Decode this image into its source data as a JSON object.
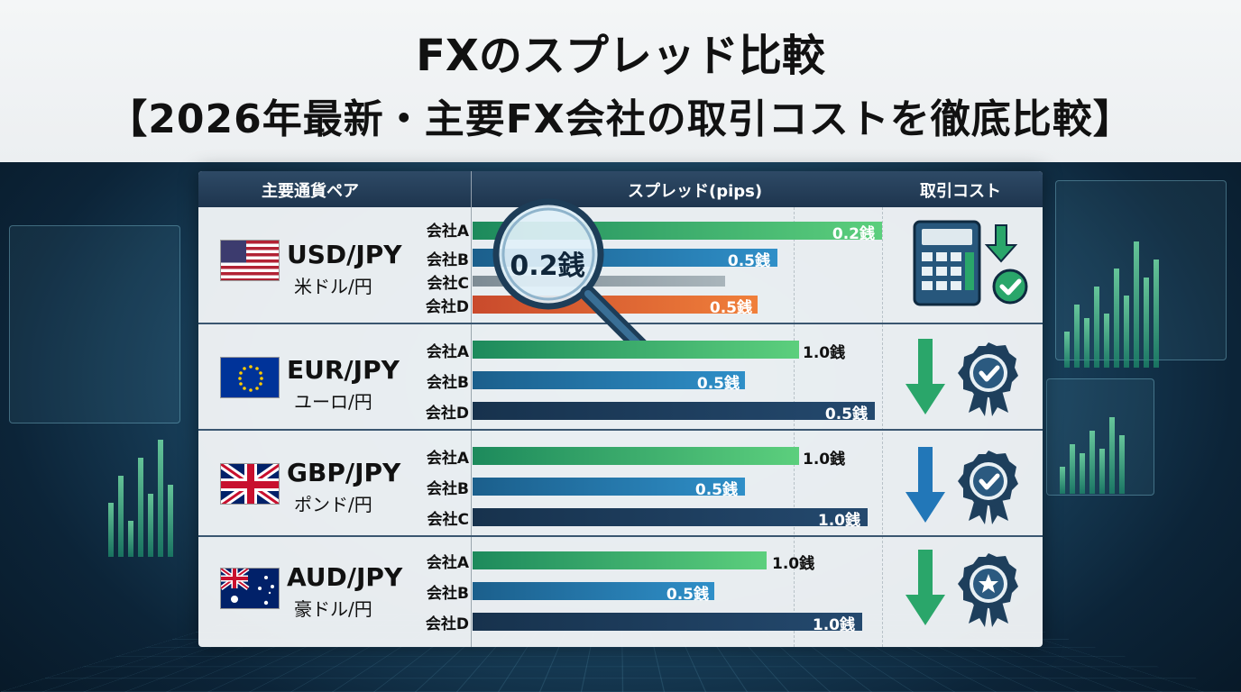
{
  "title": {
    "line1": "FXのスプレッド比較",
    "line2": "【2026年最新・主要FX会社の取引コストを徹底比較】"
  },
  "table": {
    "headers": {
      "pair": "主要通貨ペア",
      "spread": "スプレッド(pips)",
      "cost": "取引コスト"
    },
    "magnifier_label": "0.2銭",
    "groups": [
      {
        "code": "USD/JPY",
        "name": "米ドル/円",
        "flag": "us",
        "cost_icon": "calculator-down-check-icon",
        "rows": [
          {
            "company": "会社A",
            "value": "0.2銭",
            "color": "green"
          },
          {
            "company": "会社B",
            "value": "0.5銭",
            "color": "blue"
          },
          {
            "company": "会社C",
            "value": "",
            "color": "grey"
          },
          {
            "company": "会社D",
            "value": "0.5銭",
            "color": "orange"
          }
        ]
      },
      {
        "code": "EUR/JPY",
        "name": "ユーロ/円",
        "flag": "eu",
        "cost_icon": "arrow-down-check-badge-icon",
        "rows": [
          {
            "company": "会社A",
            "value": "1.0銭",
            "color": "green"
          },
          {
            "company": "会社B",
            "value": "0.5銭",
            "color": "blue"
          },
          {
            "company": "会社D",
            "value": "0.5銭",
            "color": "navy"
          }
        ]
      },
      {
        "code": "GBP/JPY",
        "name": "ポンド/円",
        "flag": "gb",
        "cost_icon": "arrow-down-check-badge-icon",
        "rows": [
          {
            "company": "会社A",
            "value": "1.0銭",
            "color": "green"
          },
          {
            "company": "会社B",
            "value": "0.5銭",
            "color": "blue"
          },
          {
            "company": "会社C",
            "value": "1.0銭",
            "color": "navy"
          }
        ]
      },
      {
        "code": "AUD/JPY",
        "name": "豪ドル/円",
        "flag": "au",
        "cost_icon": "arrow-down-star-badge-icon",
        "rows": [
          {
            "company": "会社A",
            "value": "1.0銭",
            "color": "green"
          },
          {
            "company": "会社B",
            "value": "0.5銭",
            "color": "blue"
          },
          {
            "company": "会社D",
            "value": "1.0銭",
            "color": "navy"
          }
        ]
      }
    ]
  },
  "colors": {
    "header_bg": "#1e354e",
    "green": "#5ccf7d",
    "blue": "#2f8fc8",
    "navy": "#24496e",
    "grey": "#a9b5bb",
    "orange": "#f07f3a",
    "arrow_green": "#2aa66a",
    "arrow_blue": "#2277b8"
  }
}
